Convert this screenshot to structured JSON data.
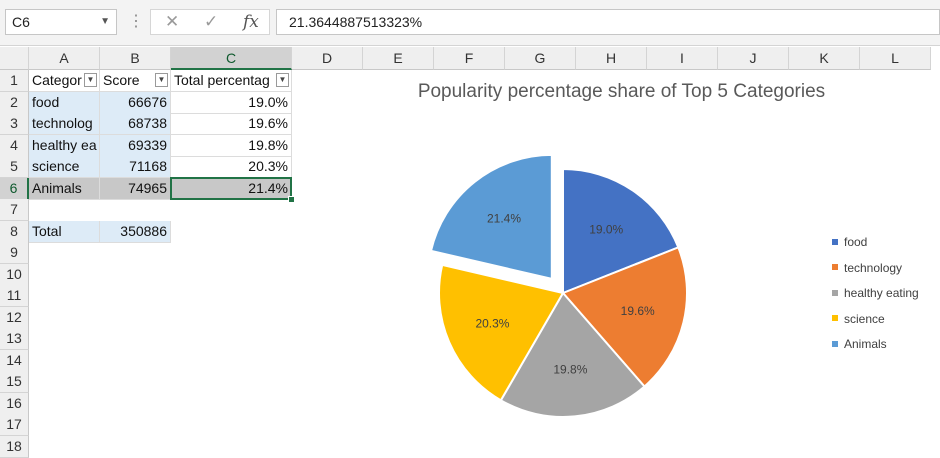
{
  "formula_bar": {
    "name_box": "C6",
    "cancel_glyph": "✕",
    "enter_glyph": "✓",
    "fx_glyph": "fx",
    "value": "21.3644887513323%"
  },
  "columns": [
    "A",
    "B",
    "C",
    "D",
    "E",
    "F",
    "G",
    "H",
    "I",
    "J",
    "K",
    "L"
  ],
  "rows": [
    "1",
    "2",
    "3",
    "4",
    "5",
    "6",
    "7",
    "8",
    "9",
    "10",
    "11",
    "12",
    "13",
    "14",
    "15",
    "16",
    "17",
    "18"
  ],
  "table": {
    "headers": [
      "Categor",
      "Score",
      "Total percentag"
    ],
    "rows": [
      {
        "category": "food",
        "score": "66676",
        "pct": "19.0%"
      },
      {
        "category": "technolog",
        "score": "68738",
        "pct": "19.6%"
      },
      {
        "category": "healthy ea",
        "score": "69339",
        "pct": "19.8%"
      },
      {
        "category": "science",
        "score": "71168",
        "pct": "20.3%"
      },
      {
        "category": "Animals",
        "score": "74965",
        "pct": "21.4%"
      }
    ],
    "total_label": "Total",
    "total_value": "350886"
  },
  "chart_data": {
    "type": "pie",
    "title": "Popularity percentage share of Top 5 Categories",
    "categories": [
      "food",
      "technology",
      "healthy eating",
      "science",
      "Animals"
    ],
    "values": [
      66676,
      68738,
      69339,
      71168,
      74965
    ],
    "labels": [
      "19.0%",
      "19.6%",
      "19.8%",
      "20.3%",
      "21.4%"
    ],
    "colors": [
      "#4472c4",
      "#ed7d31",
      "#a5a5a5",
      "#ffc000",
      "#5b9bd5"
    ],
    "exploded": "Animals",
    "legend": "right"
  }
}
